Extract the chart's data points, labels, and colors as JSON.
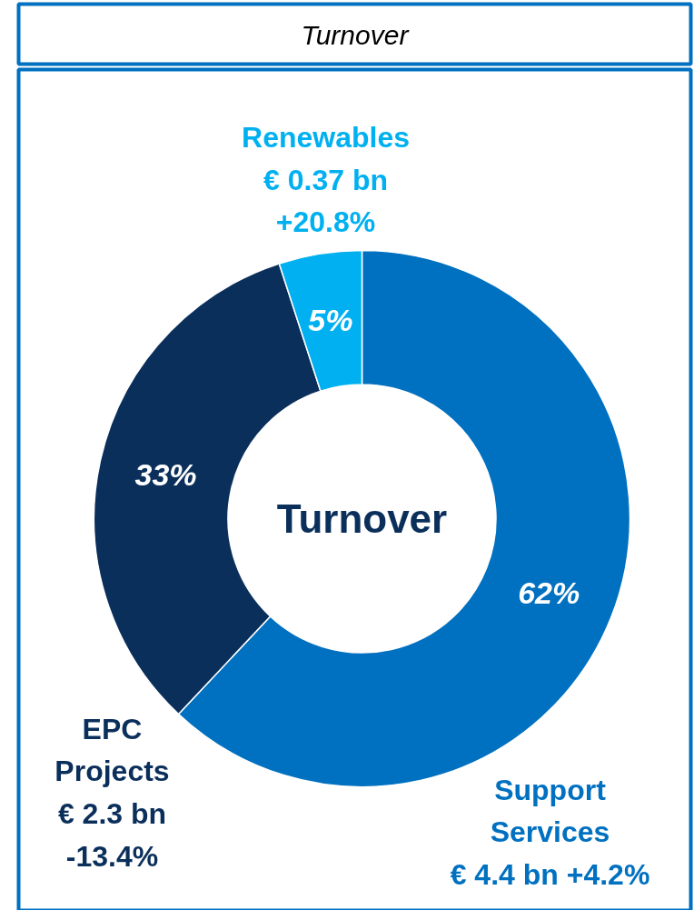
{
  "chart_data": {
    "type": "donut",
    "title": "Turnover",
    "categories": [
      "Support\nServices",
      "EPC\nProjects",
      "Renewables"
    ],
    "values": [
      62,
      33,
      5
    ],
    "colors": [
      "#0070c0",
      "#0b2f5b",
      "#00b0f0"
    ],
    "value_labels": [
      "62%",
      "33%",
      "5%"
    ],
    "annotations": [
      "Turnover",
      "€ 4.4 bn +4.2%",
      "€ 2.3 bn\n-13.4%",
      "€ 0.37 bn\n+20.8%"
    ]
  }
}
